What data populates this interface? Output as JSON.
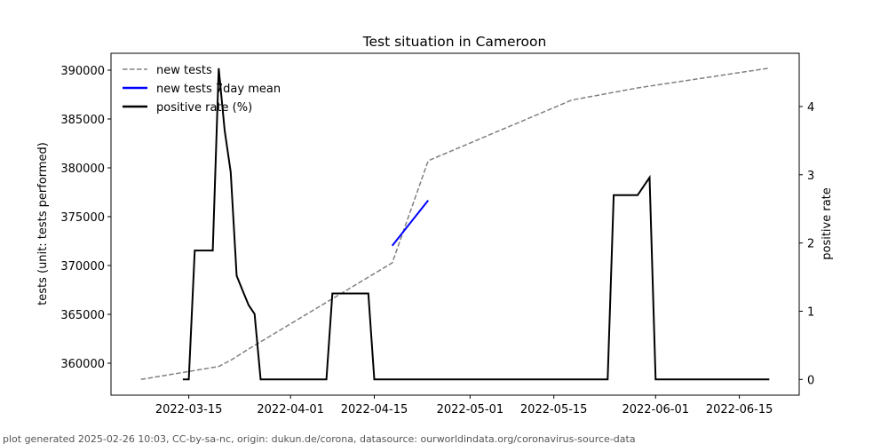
{
  "chart_data": {
    "type": "line",
    "title": "Test situation in Cameroon",
    "xlabel": "",
    "ylabel": "tests (unit: tests performed)",
    "ylabel_right": "positive rate",
    "ylim": [
      356727,
      391727
    ],
    "ylim_right": [
      -0.23,
      4.78
    ],
    "xlim": [
      "2022-03-02",
      "2022-06-25"
    ],
    "grid": false,
    "legend_position": "top-left",
    "x_ticks": [
      "2022-03-15",
      "2022-04-01",
      "2022-04-15",
      "2022-05-01",
      "2022-05-15",
      "2022-06-01",
      "2022-06-15"
    ],
    "y_ticks": [
      360000,
      365000,
      370000,
      375000,
      380000,
      385000,
      390000
    ],
    "y_ticks_right": [
      0,
      1,
      2,
      3,
      4
    ],
    "series": [
      {
        "name": "new tests",
        "axis": "left",
        "color": "#808080",
        "style": "dashed",
        "x": [
          "2022-03-07",
          "2022-03-20",
          "2022-03-22",
          "2022-03-25",
          "2022-04-18",
          "2022-04-24",
          "2022-05-18",
          "2022-05-29",
          "2022-06-20"
        ],
        "values": [
          358340,
          359660,
          360300,
          361450,
          370270,
          380730,
          386940,
          388180,
          390210
        ]
      },
      {
        "name": "new tests 7day mean",
        "axis": "left",
        "color": "#0000ff",
        "style": "solid",
        "x": [
          "2022-04-18",
          "2022-04-24"
        ],
        "values": [
          372030,
          376670
        ]
      },
      {
        "name": "positive rate (%)",
        "axis": "right",
        "color": "#000000",
        "style": "solid",
        "x": [
          "2022-03-14",
          "2022-03-15",
          "2022-03-16",
          "2022-03-19",
          "2022-03-20",
          "2022-03-21",
          "2022-03-22",
          "2022-03-23",
          "2022-03-24",
          "2022-03-25",
          "2022-03-26",
          "2022-03-27",
          "2022-04-07",
          "2022-04-08",
          "2022-04-14",
          "2022-04-15",
          "2022-05-24",
          "2022-05-25",
          "2022-05-29",
          "2022-05-31",
          "2022-06-01",
          "2022-06-20"
        ],
        "values": [
          0,
          0,
          1.89,
          1.89,
          4.56,
          3.65,
          3.04,
          1.52,
          1.3,
          1.09,
          0.96,
          0,
          0,
          1.26,
          1.26,
          0,
          0,
          2.7,
          2.7,
          2.96,
          0,
          0
        ]
      }
    ]
  },
  "footer": "plot generated 2025-02-26 10:03, CC-by-sa-nc, origin: dukun.de/corona, datasource: ourworldindata.org/coronavirus-source-data"
}
